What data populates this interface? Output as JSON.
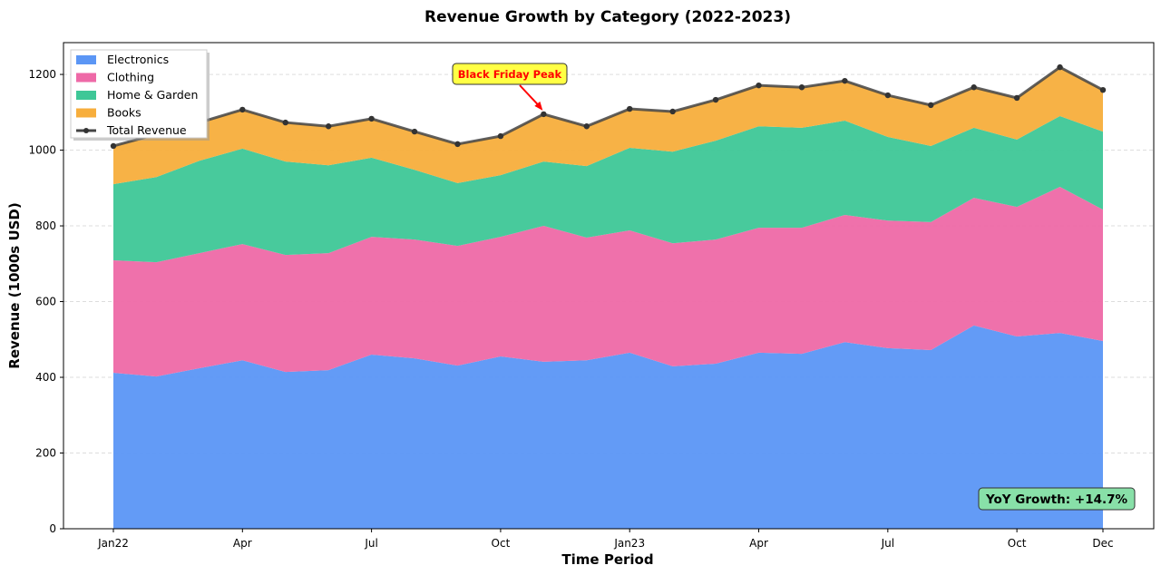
{
  "chart_data": {
    "type": "area",
    "stacked": true,
    "title": "Revenue Growth by Category (2022-2023)",
    "xlabel": "Time Period",
    "ylabel": "Revenue (1000s USD)",
    "x": [
      "Jan22",
      "Feb22",
      "Mar22",
      "Apr22",
      "May22",
      "Jun22",
      "Jul22",
      "Aug22",
      "Sep22",
      "Oct22",
      "Nov22",
      "Dec22",
      "Jan23",
      "Feb23",
      "Mar23",
      "Apr23",
      "May23",
      "Jun23",
      "Jul23",
      "Aug23",
      "Sep23",
      "Oct23",
      "Nov23",
      "Dec23"
    ],
    "xticks": [
      {
        "index": 0,
        "label": "Jan22"
      },
      {
        "index": 3,
        "label": "Apr"
      },
      {
        "index": 6,
        "label": "Jul"
      },
      {
        "index": 9,
        "label": "Oct"
      },
      {
        "index": 12,
        "label": "Jan23"
      },
      {
        "index": 15,
        "label": "Apr"
      },
      {
        "index": 18,
        "label": "Jul"
      },
      {
        "index": 21,
        "label": "Oct"
      },
      {
        "index": 23,
        "label": "Dec"
      }
    ],
    "yticks": [
      0,
      200,
      400,
      600,
      800,
      1000,
      1200
    ],
    "ylim": [
      0,
      1284
    ],
    "grid": "y-dashed",
    "legend_placement": "top-left",
    "series": [
      {
        "name": "Electronics",
        "color": "#5b96f5",
        "values": [
          412,
          402,
          424,
          445,
          414,
          419,
          460,
          450,
          431,
          455,
          441,
          445,
          465,
          429,
          436,
          465,
          462,
          493,
          477,
          472,
          537,
          508,
          517,
          496
        ]
      },
      {
        "name": "Clothing",
        "color": "#ee69a7",
        "values": [
          297,
          302,
          304,
          307,
          309,
          309,
          311,
          314,
          316,
          316,
          359,
          324,
          323,
          325,
          328,
          330,
          333,
          336,
          337,
          338,
          337,
          342,
          386,
          347
        ]
      },
      {
        "name": "Home & Garden",
        "color": "#3ec797",
        "values": [
          201,
          225,
          244,
          252,
          247,
          232,
          209,
          184,
          166,
          163,
          170,
          189,
          218,
          242,
          261,
          268,
          264,
          249,
          221,
          201,
          185,
          178,
          187,
          206
        ]
      },
      {
        "name": "Books",
        "color": "#f7ae3c",
        "values": [
          101,
          113,
          101,
          103,
          103,
          103,
          103,
          101,
          103,
          103,
          125,
          105,
          103,
          106,
          108,
          108,
          107,
          105,
          110,
          108,
          107,
          110,
          129,
          110
        ]
      }
    ],
    "total_line": {
      "name": "Total Revenue",
      "color": "#444444"
    },
    "annotations": [
      {
        "text": "Black Friday Peak",
        "target_index": 10,
        "color": "#ff0000",
        "box_color": "#ffff44"
      },
      {
        "text": "YoY Growth: +14.7%",
        "box_color": "#88e0a8"
      }
    ]
  }
}
